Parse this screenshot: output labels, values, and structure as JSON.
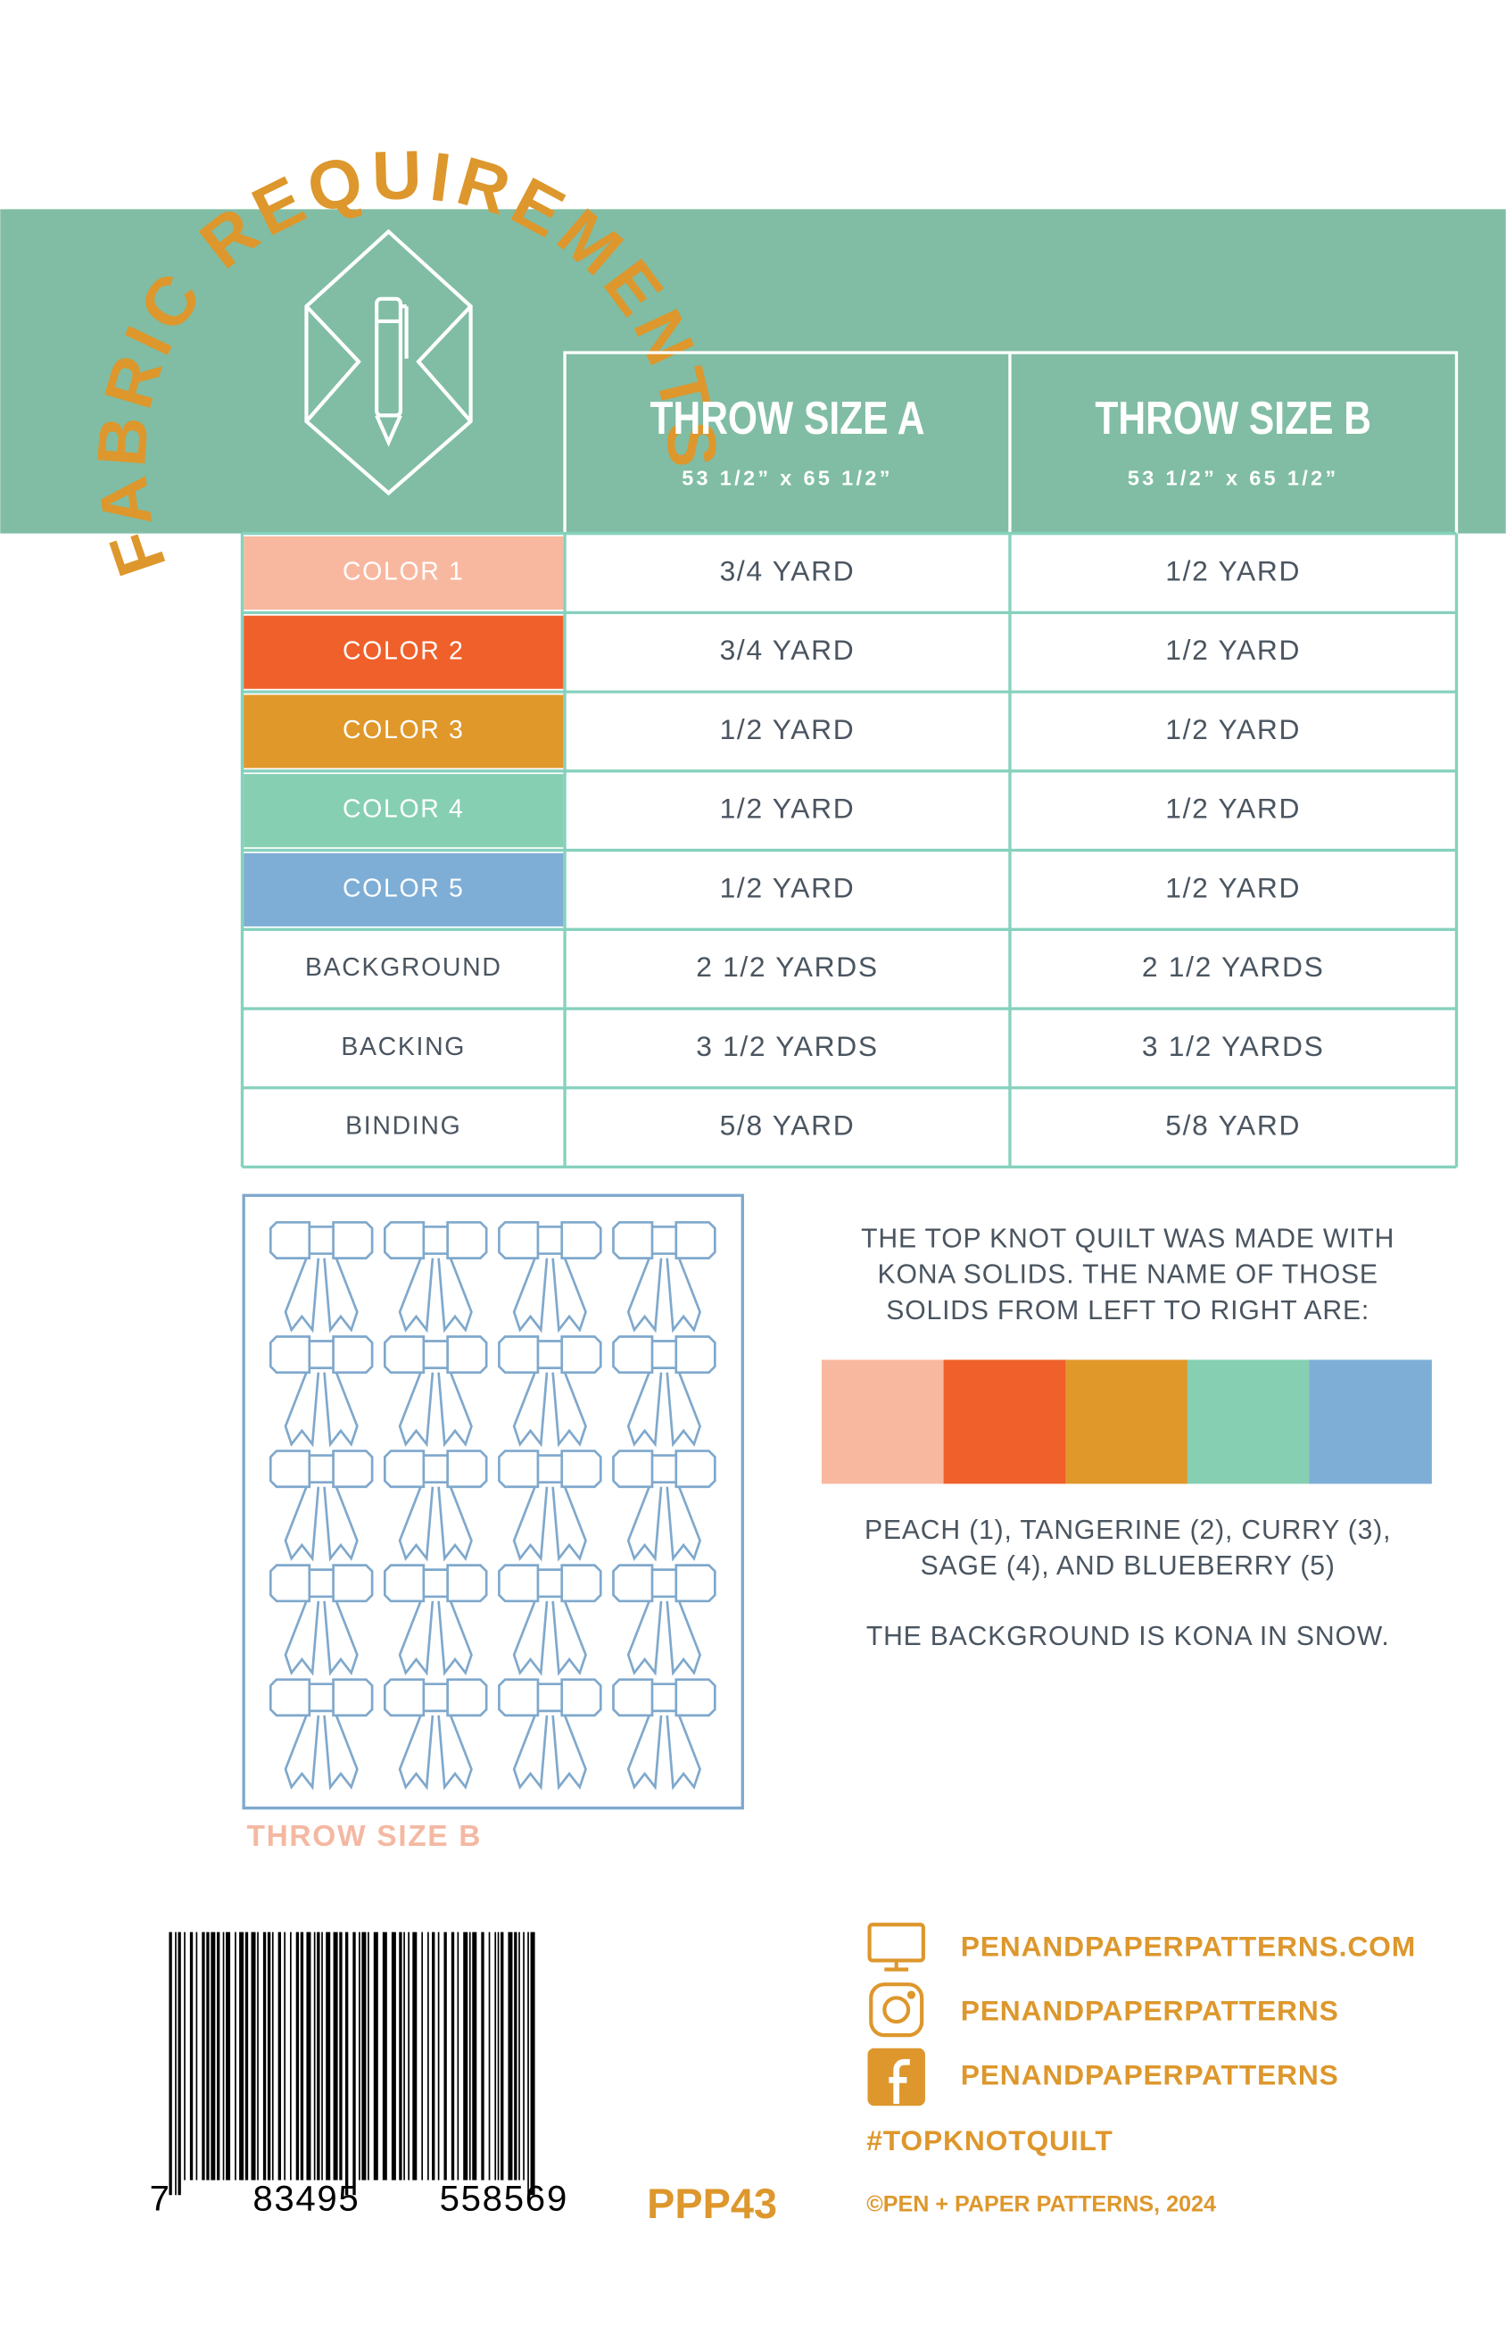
{
  "header": {
    "title": "FABRIC REQUIREMENTS"
  },
  "table": {
    "columns": [
      {
        "title": "THROW SIZE A",
        "size": "53 1/2” x 65 1/2”"
      },
      {
        "title": "THROW SIZE B",
        "size": "53 1/2” x 65 1/2”"
      }
    ],
    "rows": [
      {
        "label": "COLOR 1",
        "color": "#f8b8a0",
        "cells": [
          "3/4 YARD",
          "1/2 YARD"
        ]
      },
      {
        "label": "COLOR 2",
        "color": "#f0602a",
        "cells": [
          "3/4 YARD",
          "1/2 YARD"
        ]
      },
      {
        "label": "COLOR 3",
        "color": "#e0982a",
        "cells": [
          "1/2 YARD",
          "1/2 YARD"
        ]
      },
      {
        "label": "COLOR 4",
        "color": "#86cfb3",
        "cells": [
          "1/2 YARD",
          "1/2 YARD"
        ]
      },
      {
        "label": "COLOR 5",
        "color": "#7eaed6",
        "cells": [
          "1/2 YARD",
          "1/2 YARD"
        ]
      },
      {
        "label": "BACKGROUND",
        "cells": [
          "2 1/2 YARDS",
          "2 1/2 YARDS"
        ]
      },
      {
        "label": "BACKING",
        "cells": [
          "3 1/2 YARDS",
          "3 1/2 YARDS"
        ]
      },
      {
        "label": "BINDING",
        "cells": [
          "5/8 YARD",
          "5/8 YARD"
        ]
      }
    ]
  },
  "quilt": {
    "caption": "THROW SIZE B"
  },
  "notes": {
    "intro": [
      "THE TOP KNOT QUILT WAS MADE WITH",
      "KONA SOLIDS. THE NAME OF THOSE",
      "SOLIDS FROM LEFT TO RIGHT ARE:"
    ],
    "swatches": [
      "#f8b8a0",
      "#f0602a",
      "#e0982a",
      "#86cfb3",
      "#7eaed6"
    ],
    "names": [
      "PEACH (1), TANGERINE (2), CURRY (3),",
      "SAGE (4), AND BLUEBERRY (5)"
    ],
    "background": "THE BACKGROUND IS KONA IN SNOW."
  },
  "contact": {
    "website": "PENANDPAPERPATTERNS.COM",
    "instagram": "PENANDPAPERPATTERNS",
    "facebook": "PENANDPAPERPATTERNS",
    "hashtag": "#TOPKNOTQUILT",
    "copyright": "©PEN + PAPER PATTERNS, 2024"
  },
  "barcode": {
    "digits": [
      "7",
      "83495",
      "55856",
      "9"
    ]
  },
  "sku": "PPP43"
}
